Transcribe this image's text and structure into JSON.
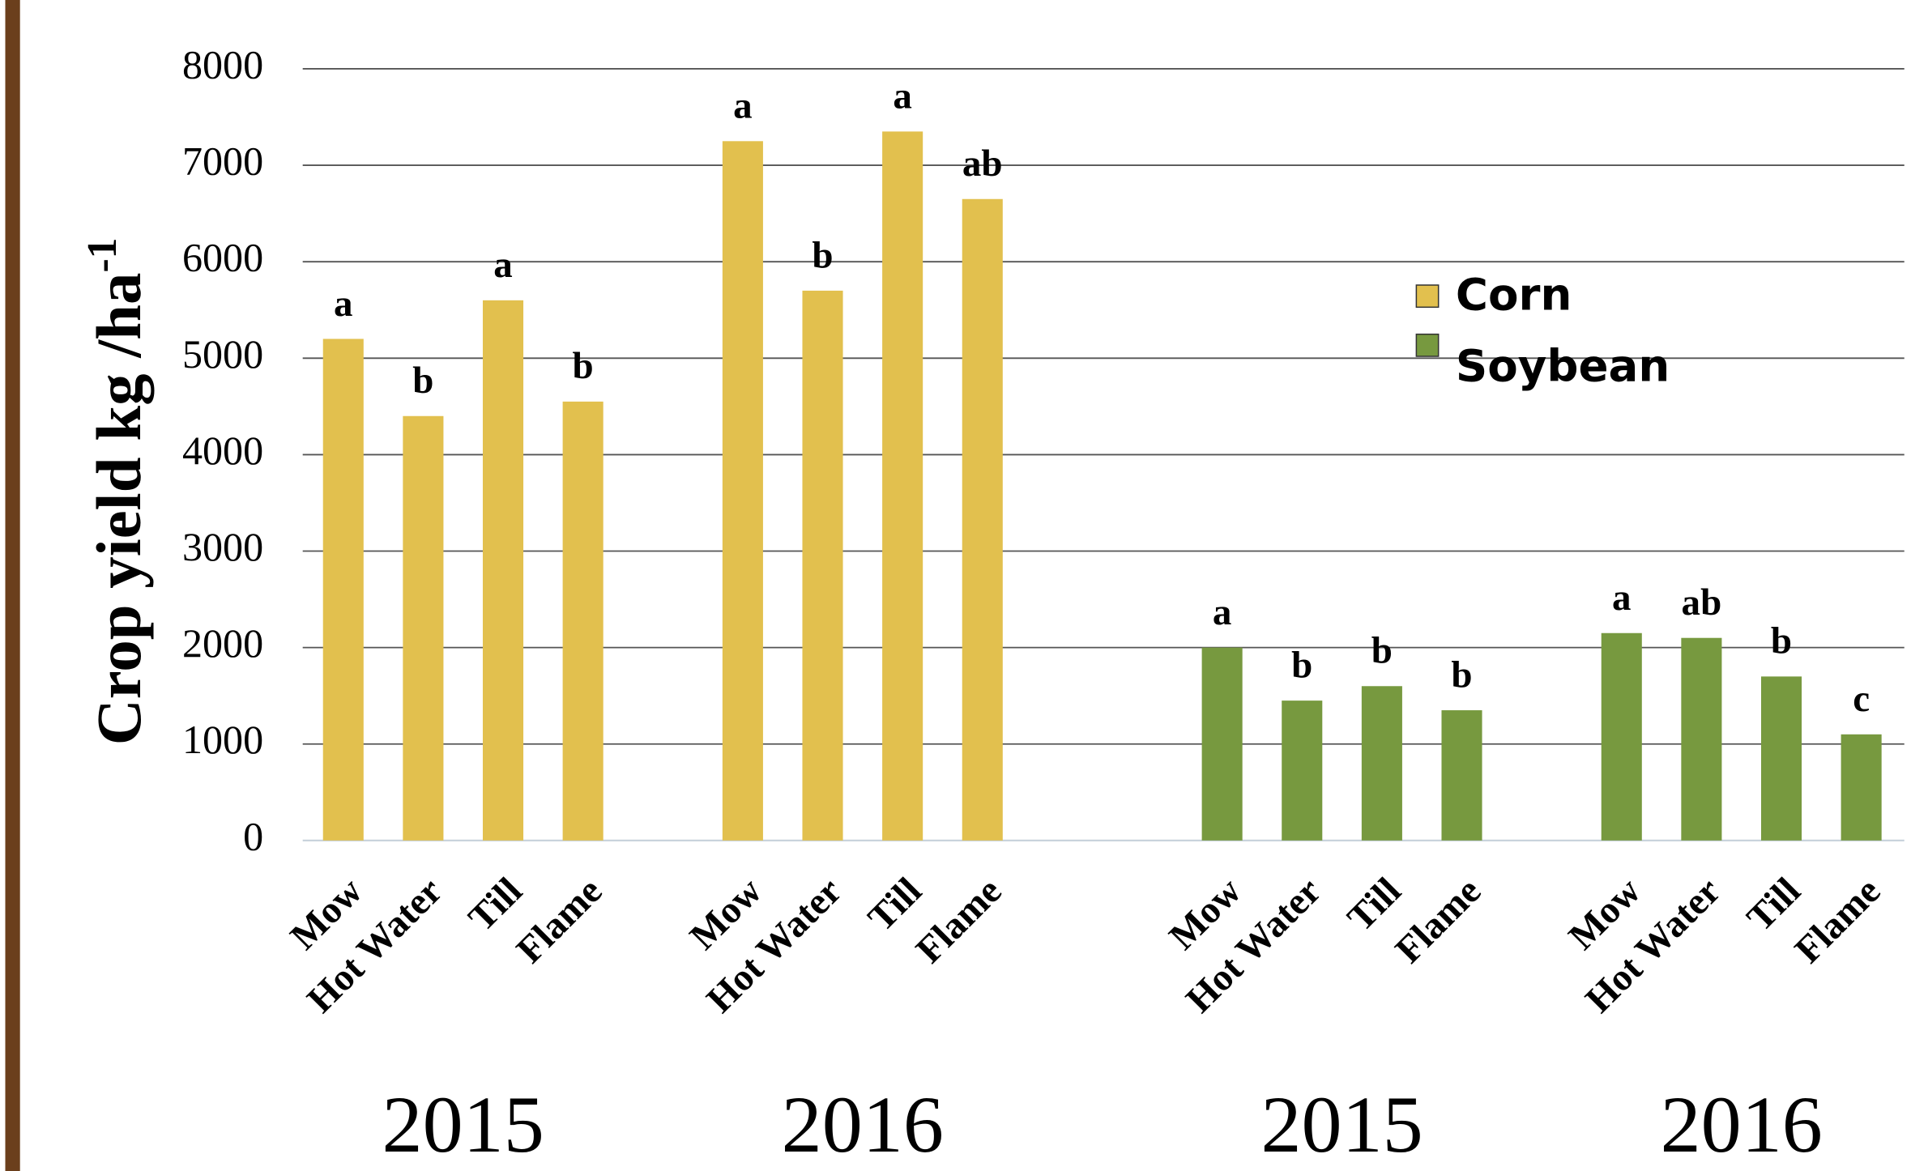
{
  "chart_data": {
    "type": "bar",
    "ylabel": "Crop yield kg /ha",
    "ylabel_superscript": "-1",
    "categories": [
      "Mow",
      "Hot Water",
      "Till",
      "Flame",
      "Mow",
      "Hot Water",
      "Till",
      "Flame",
      "Mow",
      "Hot Water",
      "Till",
      "Flame",
      "Mow",
      "Hot Water",
      "Till",
      "Flame"
    ],
    "group_labels": [
      "2015",
      "2016",
      "2015",
      "2016"
    ],
    "series": [
      {
        "name": "Corn",
        "color": "#e2c04e",
        "values": [
          5200,
          4400,
          5600,
          4550,
          7250,
          5700,
          7350,
          6650,
          null,
          null,
          null,
          null,
          null,
          null,
          null,
          null
        ],
        "letters": [
          "a",
          "b",
          "a",
          "b",
          "a",
          "b",
          "a",
          "ab",
          null,
          null,
          null,
          null,
          null,
          null,
          null,
          null
        ]
      },
      {
        "name": "Soybean",
        "color": "#77993f",
        "values": [
          null,
          null,
          null,
          null,
          null,
          null,
          null,
          null,
          2000,
          1450,
          1600,
          1350,
          2150,
          2100,
          1700,
          1100
        ],
        "letters": [
          null,
          null,
          null,
          null,
          null,
          null,
          null,
          null,
          "a",
          "b",
          "b",
          "b",
          "a",
          "ab",
          "b",
          "c"
        ]
      }
    ],
    "ylim": [
      0,
      8000
    ],
    "yticks": [
      0,
      1000,
      2000,
      3000,
      4000,
      5000,
      6000,
      7000,
      8000
    ],
    "grid": true,
    "legend": "right"
  }
}
